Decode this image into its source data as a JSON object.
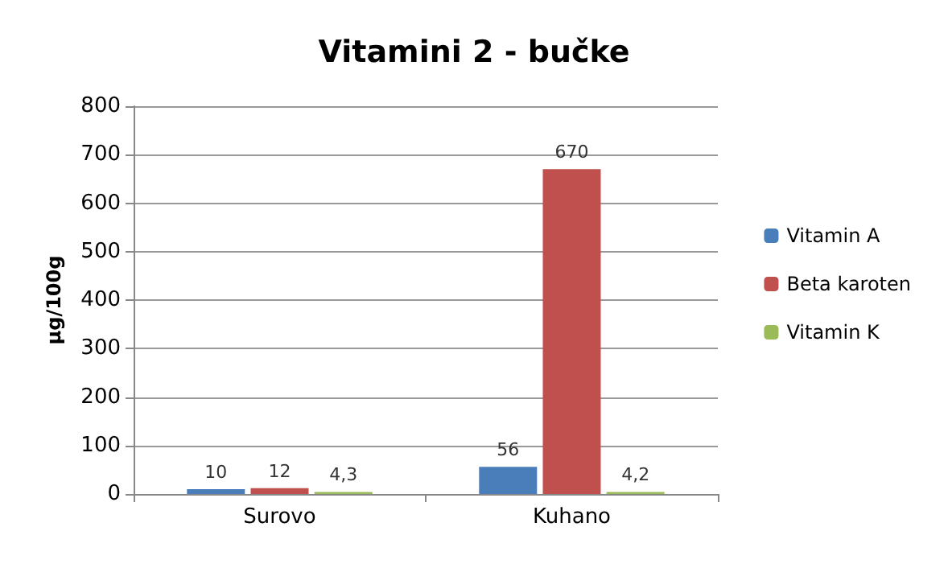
{
  "chart_data": {
    "type": "bar",
    "title": "Vitamini 2 - bučke",
    "ylabel": "µg/100g",
    "categories": [
      "Surovo",
      "Kuhano"
    ],
    "series": [
      {
        "name": "Vitamin A",
        "color": "#4a7ebb",
        "values": [
          10,
          56
        ],
        "value_labels": [
          "10",
          "56"
        ]
      },
      {
        "name": "Beta karoten",
        "color": "#c0504d",
        "values": [
          12,
          670
        ],
        "value_labels": [
          "12",
          "670"
        ]
      },
      {
        "name": "Vitamin K",
        "color": "#9bbb59",
        "values": [
          4.3,
          4.2
        ],
        "value_labels": [
          "4,3",
          "4,2"
        ]
      }
    ],
    "ylim": [
      0,
      800
    ],
    "yticks": [
      0,
      100,
      200,
      300,
      400,
      500,
      600,
      700,
      800
    ],
    "grid": "y",
    "legend": "right"
  }
}
